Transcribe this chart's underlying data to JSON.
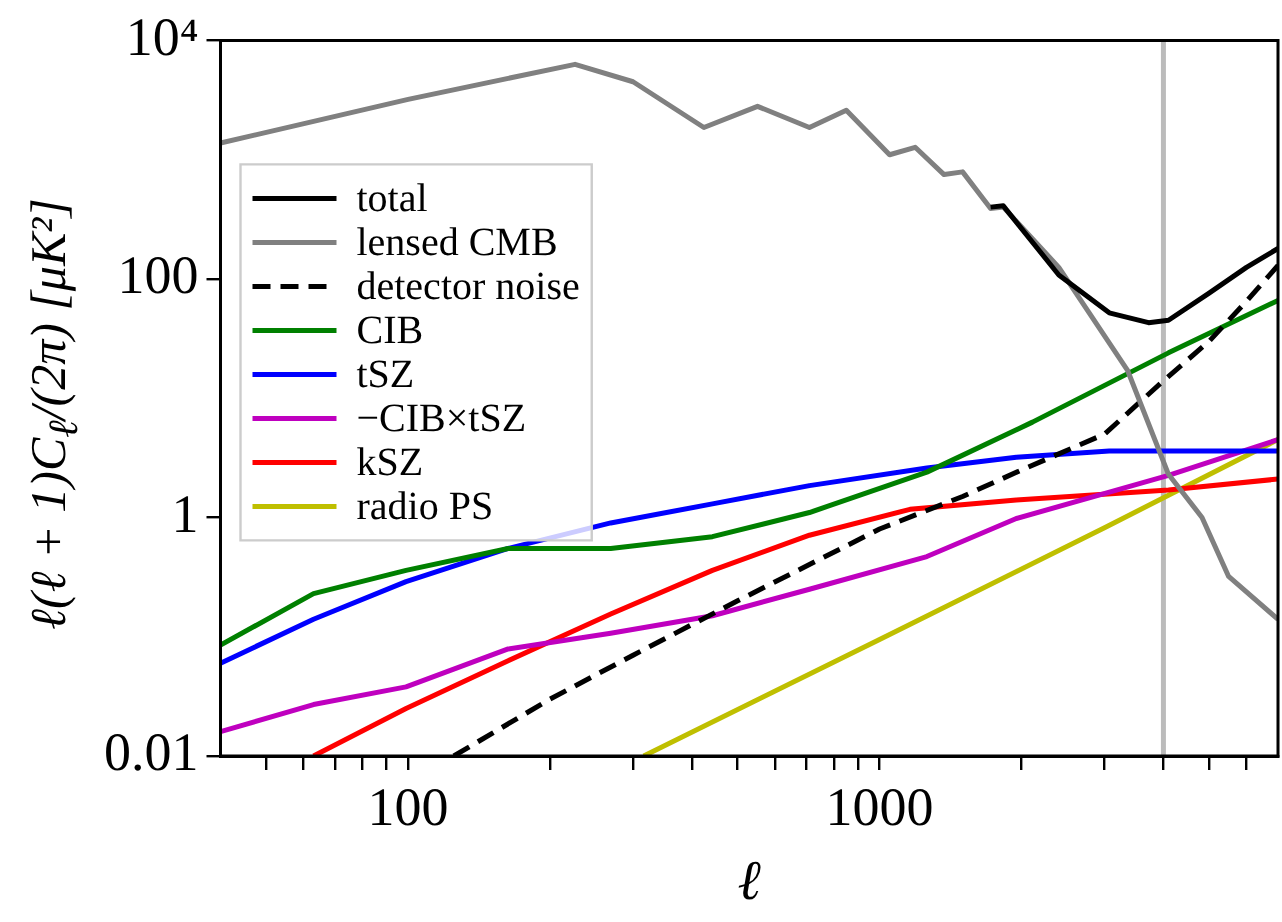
{
  "chart_data": {
    "type": "line",
    "xlabel": "ℓ",
    "ylabel": "ℓ(ℓ + 1)C$_{ℓ}$/(2π) [μK²]",
    "log": "xy",
    "xlim": [
      40,
      7000
    ],
    "ylim": [
      0.01,
      10000
    ],
    "xticks": [
      {
        "value": 50,
        "label": null
      },
      {
        "value": 60,
        "label": null
      },
      {
        "value": 70,
        "label": null
      },
      {
        "value": 80,
        "label": null
      },
      {
        "value": 90,
        "label": null
      },
      100,
      {
        "value": 200,
        "label": null
      },
      {
        "value": 300,
        "label": null
      },
      {
        "value": 400,
        "label": null
      },
      {
        "value": 500,
        "label": null
      },
      {
        "value": 600,
        "label": null
      },
      {
        "value": 700,
        "label": null
      },
      {
        "value": 800,
        "label": null
      },
      {
        "value": 900,
        "label": null
      },
      1000,
      {
        "value": 2000,
        "label": null
      },
      {
        "value": 3000,
        "label": null
      },
      {
        "value": 4000,
        "label": null
      },
      {
        "value": 5000,
        "label": null
      },
      {
        "value": 6000,
        "label": null
      }
    ],
    "yticks": [
      0.01,
      1,
      100,
      {
        "value": 10000,
        "label": "10⁴"
      }
    ],
    "grid": false,
    "legend": "top left",
    "marker": "none",
    "ref_lines": [
      {
        "axis": "x",
        "value": 4000,
        "color": "#bbbbbb"
      }
    ],
    "series": [
      {
        "name": "total",
        "color": "#000000",
        "x": [
          1720,
          1830,
          2400,
          3070,
          3720,
          4100,
          5000,
          6000,
          7000
        ],
        "values": [
          400,
          410,
          108,
          52,
          43,
          45,
          76,
          125,
          180
        ]
      },
      {
        "name": "lensed CMB",
        "color": "#808080",
        "x": [
          40,
          100,
          226,
          300,
          424,
          551,
          710,
          850,
          1050,
          1190,
          1370,
          1500,
          1720,
          1830,
          2400,
          3360,
          4100,
          4830,
          5500,
          7000
        ],
        "values": [
          1380,
          3200,
          6300,
          4500,
          1860,
          2800,
          1860,
          2600,
          1100,
          1270,
          750,
          790,
          390,
          400,
          125,
          17,
          2.3,
          1,
          0.32,
          0.14
        ]
      },
      {
        "name": "detector noise",
        "color": "#000000",
        "line_style": "dashed",
        "x": [
          125,
          200,
          300,
          500,
          1000,
          1500,
          2000,
          3000,
          4000,
          5000,
          6000,
          7000
        ],
        "values": [
          0.01,
          0.03,
          0.07,
          0.2,
          0.8,
          1.5,
          2.5,
          5,
          14,
          30,
          65,
          130
        ]
      },
      {
        "name": "CIB",
        "color": "#008000",
        "x": [
          40,
          63,
          99,
          163,
          269,
          442,
          710,
          1260,
          2110,
          4100,
          7000
        ],
        "values": [
          0.085,
          0.23,
          0.36,
          0.55,
          0.55,
          0.69,
          1.1,
          2.4,
          6.3,
          24,
          66
        ]
      },
      {
        "name": "tSZ",
        "color": "#0000ff",
        "x": [
          40,
          63,
          99,
          163,
          269,
          442,
          710,
          1260,
          1950,
          3070,
          4100,
          7000
        ],
        "values": [
          0.06,
          0.14,
          0.29,
          0.55,
          0.9,
          1.3,
          1.85,
          2.6,
          3.2,
          3.6,
          3.6,
          3.6
        ]
      },
      {
        "name": "−CIB×tSZ",
        "color": "#bf00bf",
        "x": [
          40,
          63,
          99,
          163,
          269,
          442,
          710,
          1260,
          1950,
          4100,
          7000
        ],
        "values": [
          0.016,
          0.027,
          0.038,
          0.079,
          0.107,
          0.15,
          0.25,
          0.47,
          0.98,
          2.25,
          4.5
        ]
      },
      {
        "name": "kSZ",
        "color": "#ff0000",
        "x": [
          63,
          99,
          163,
          269,
          442,
          710,
          1160,
          1950,
          4100,
          7000
        ],
        "values": [
          0.01,
          0.025,
          0.063,
          0.155,
          0.36,
          0.71,
          1.17,
          1.4,
          1.7,
          2.1
        ]
      },
      {
        "name": "radio PS",
        "color": "#bfbf00",
        "x": [
          316,
          1000,
          3000,
          7000
        ],
        "values": [
          0.01,
          0.095,
          0.82,
          4.5
        ]
      }
    ]
  }
}
